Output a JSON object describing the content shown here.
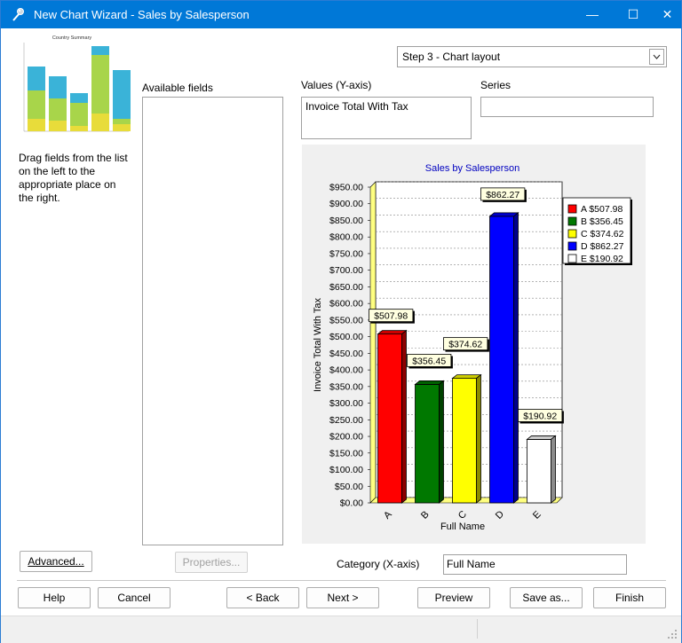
{
  "window": {
    "title": "New Chart Wizard - Sales by Salesperson",
    "minimize": "—",
    "maximize": "☐",
    "close": "✕"
  },
  "thumbnail": {
    "title": "Country Summary"
  },
  "help_text": "Drag fields from the list on the left to the appropriate place on the right.",
  "available_fields_label": "Available fields",
  "step": {
    "selected": "Step 3 - Chart layout"
  },
  "values_label": "Values (Y-axis)",
  "values_field": "Invoice Total With Tax",
  "series_label": "Series",
  "series_field": "",
  "category_label": "Category (X-axis)",
  "category_field": "Full Name",
  "buttons": {
    "advanced": "Advanced...",
    "properties": "Properties...",
    "help": "Help",
    "cancel": "Cancel",
    "back": "< Back",
    "next": "Next >",
    "preview": "Preview",
    "save_as": "Save as...",
    "finish": "Finish"
  },
  "chart_data": {
    "type": "bar",
    "title": "Sales by Salesperson",
    "xlabel": "Full Name",
    "ylabel": "Invoice Total With Tax",
    "categories": [
      "A",
      "B",
      "C",
      "D",
      "E"
    ],
    "values": [
      507.98,
      356.45,
      374.62,
      862.27,
      190.92
    ],
    "data_labels": [
      "$507.98",
      "$356.45",
      "$374.62",
      "$862.27",
      "$190.92"
    ],
    "colors": [
      "#ff0000",
      "#007800",
      "#ffff00",
      "#0000ff",
      "#ffffff"
    ],
    "ylim": [
      0,
      950
    ],
    "yticks": [
      "$0.00",
      "$50.00",
      "$100.00",
      "$150.00",
      "$200.00",
      "$250.00",
      "$300.00",
      "$350.00",
      "$400.00",
      "$450.00",
      "$500.00",
      "$550.00",
      "$600.00",
      "$650.00",
      "$700.00",
      "$750.00",
      "$800.00",
      "$850.00",
      "$900.00",
      "$950.00"
    ],
    "legend": [
      "A $507.98",
      "B $356.45",
      "C $374.62",
      "D $862.27",
      "E $190.92"
    ],
    "legend_position": "right",
    "grid": true
  }
}
